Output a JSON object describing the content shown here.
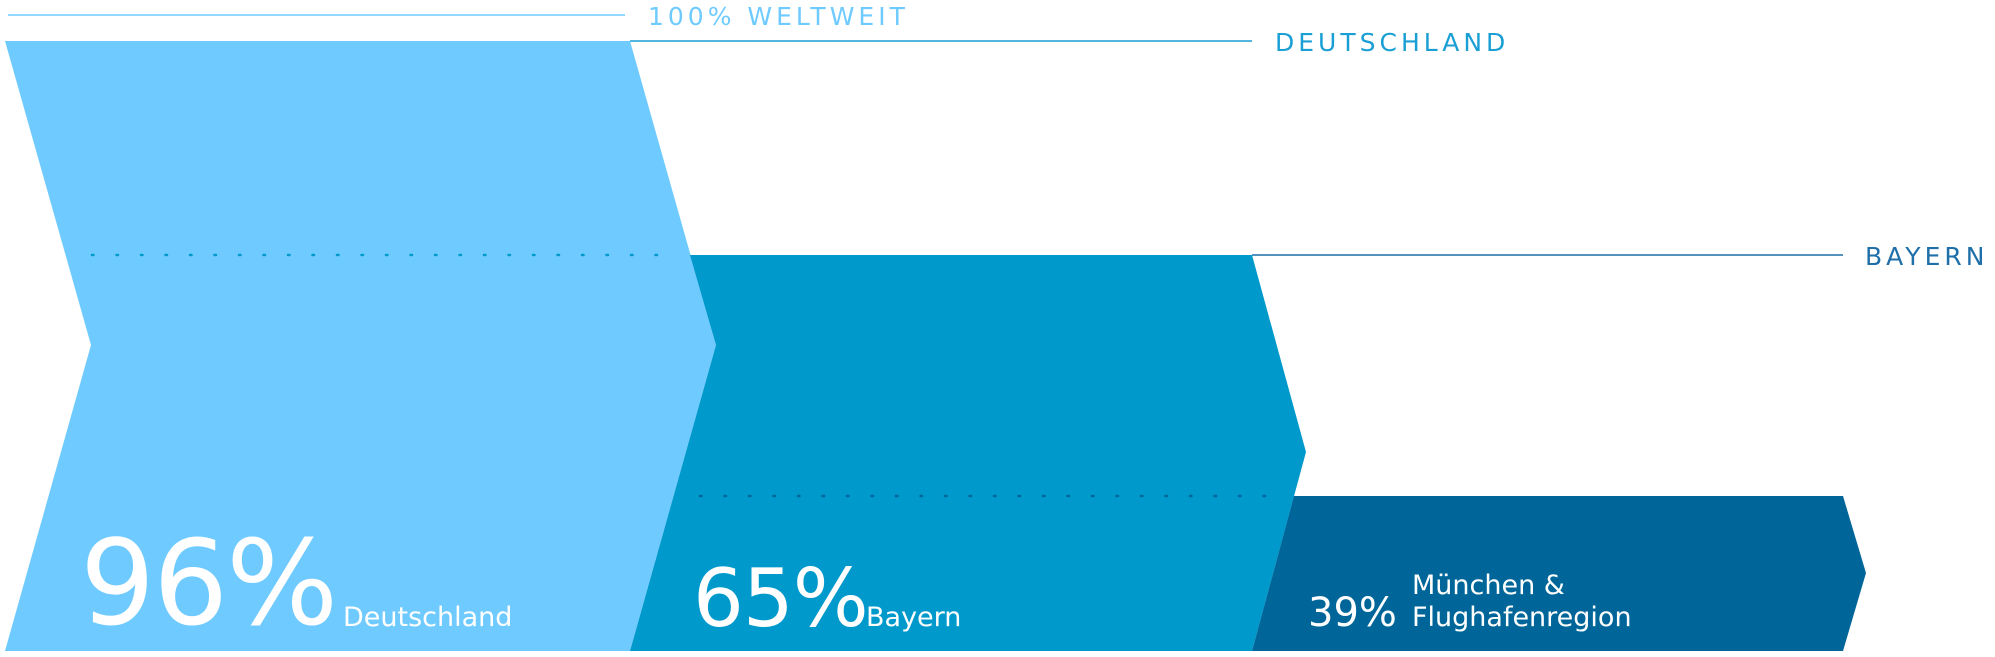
{
  "colors": {
    "level1": "#6fcbff",
    "level2": "#0099cc",
    "level3": "#006699",
    "guide_light": "#6fcbff",
    "guide_mid": "#1a9fd4",
    "guide_dark": "#1f6fa8",
    "text_on_fill": "#ffffff"
  },
  "levels": {
    "world": "100% WELTWEIT",
    "germany": "DEUTSCHLAND",
    "bavaria": "BAYERN"
  },
  "chart_data": {
    "type": "bar",
    "series": [
      {
        "name": "Deutschland",
        "value": 96,
        "display": "96%"
      },
      {
        "name": "Bayern",
        "value": 65,
        "display": "65%"
      },
      {
        "name": "München & Flughafenregion",
        "display": "39%",
        "value": 39,
        "label_lines": [
          "München &",
          "Flughafenregion"
        ]
      }
    ],
    "unit": "%",
    "baseline_label": "100% WELTWEIT",
    "ylim": [
      0,
      100
    ]
  }
}
